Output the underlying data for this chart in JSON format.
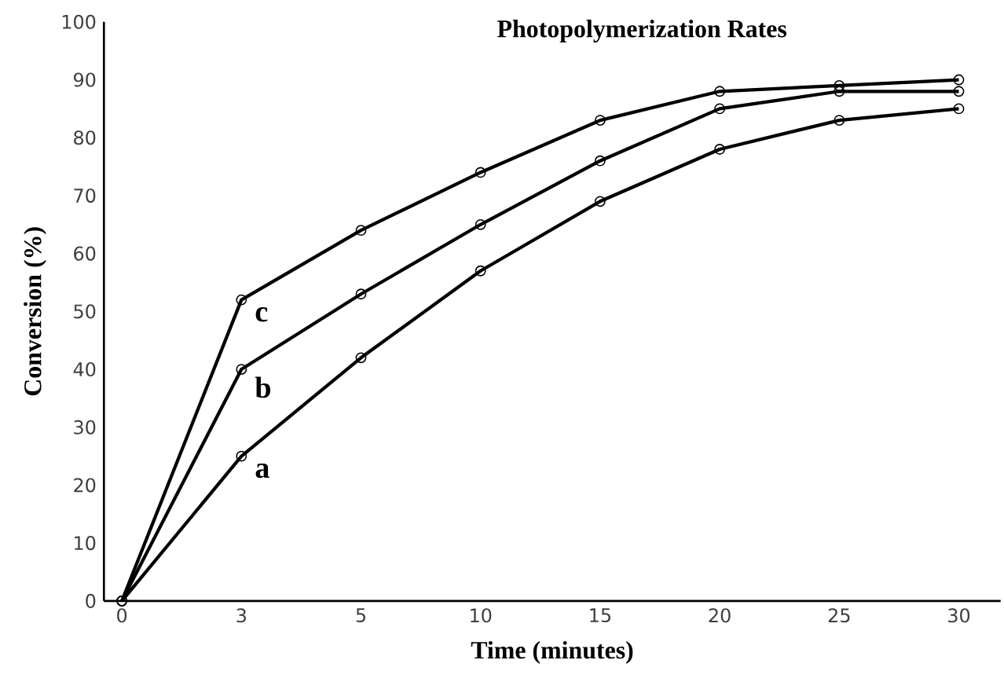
{
  "chart_data": {
    "type": "line",
    "title": "Photopolymerization Rates",
    "xlabel": "Time (minutes)",
    "ylabel": "Conversion (%)",
    "categories": [
      "0",
      "3",
      "5",
      "10",
      "15",
      "20",
      "25",
      "30"
    ],
    "series": [
      {
        "name": "c",
        "color": "#000000",
        "values": [
          0,
          52,
          64,
          74,
          83,
          88,
          89,
          90
        ]
      },
      {
        "name": "b",
        "color": "#000000",
        "values": [
          0,
          40,
          53,
          65,
          76,
          85,
          88,
          88
        ]
      },
      {
        "name": "a",
        "color": "#000000",
        "values": [
          0,
          25,
          42,
          57,
          69,
          78,
          83,
          85
        ]
      }
    ],
    "ylim": [
      0,
      100
    ],
    "yticks": [
      0,
      10,
      20,
      30,
      40,
      50,
      60,
      70,
      80,
      90,
      100
    ],
    "marker": "circle",
    "line_style": "solid",
    "grid": false,
    "legend": false
  }
}
